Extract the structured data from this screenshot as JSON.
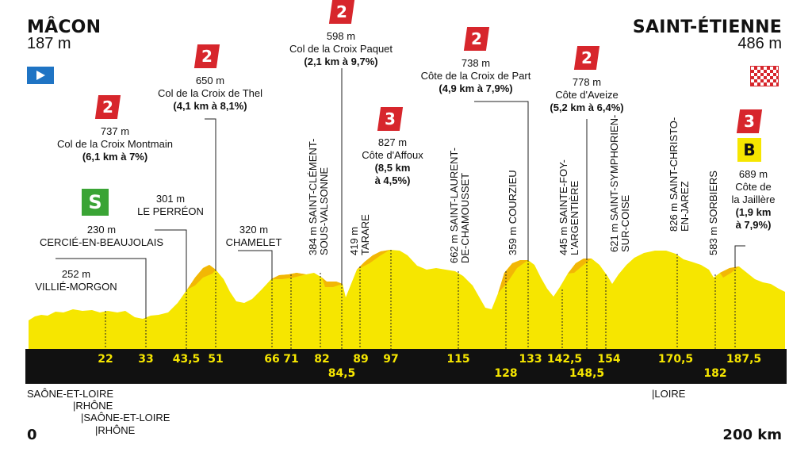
{
  "start": {
    "city": "MÂCON",
    "altitude": "187 m"
  },
  "finish": {
    "city": "SAINT-ÉTIENNE",
    "altitude": "486 m"
  },
  "climbs": [
    {
      "cat": "2",
      "altitude": "737 m",
      "name": "Col de la Croix Montmain",
      "detail": "(6,1 km à 7%)"
    },
    {
      "cat": "2",
      "altitude": "650 m",
      "name": "Col de la Croix de Thel",
      "detail": "(4,1 km à 8,1%)"
    },
    {
      "cat": "2",
      "altitude": "598 m",
      "name": "Col de la Croix Paquet",
      "detail": "(2,1 km à 9,7%)"
    },
    {
      "cat": "3",
      "altitude": "827 m",
      "name": "Côte d'Affoux",
      "detail": "(8,5 km",
      "detail2": "à 4,5%)"
    },
    {
      "cat": "2",
      "altitude": "738 m",
      "name": "Côte de la Croix de Part",
      "detail": "(4,9 km à 7,9%)"
    },
    {
      "cat": "2",
      "altitude": "778 m",
      "name": "Côte d'Aveize",
      "detail": "(5,2 km à 6,4%)"
    },
    {
      "cat": "3",
      "bonus": "B",
      "altitude": "689 m",
      "name": "Côte de",
      "name2": "la Jaillère",
      "detail": "(1,9 km",
      "detail2": "à 7,9%)"
    }
  ],
  "sprint": {
    "icon": "S"
  },
  "places": [
    {
      "altitude": "252 m",
      "name": "VILLIÉ-MORGON"
    },
    {
      "altitude": "230 m",
      "name": "CERCIÉ-EN-BEAUJOLAIS"
    },
    {
      "altitude": "301 m",
      "name": "LE PERRÉON"
    },
    {
      "altitude": "320 m",
      "name": "CHAMELET"
    }
  ],
  "vertical_places": [
    {
      "line1": "384 m SAINT-CLÉMENT-",
      "line2": "SOUS-VALSONNE"
    },
    {
      "line1": "419 m",
      "line2": "TARARE"
    },
    {
      "line1": "662 m SAINT-LAURENT-",
      "line2": "DE-CHAMOUSSET"
    },
    {
      "line1": "359 m COURZIEU",
      "line2": ""
    },
    {
      "line1": "445 m SAINTE-FOY-",
      "line2": "L'ARGENTIÈRE"
    },
    {
      "line1": "621 m SAINT-SYMPHORIEN-",
      "line2": "SUR-COISE"
    },
    {
      "line1": "826 m SAINT-CHRISTO-",
      "line2": "EN-JAREZ"
    },
    {
      "line1": "583 m SORBIERS",
      "line2": ""
    }
  ],
  "km_top": [
    "22",
    "33",
    "43,5",
    "51",
    "66",
    "71",
    "82",
    "89",
    "97",
    "115",
    "133",
    "142,5",
    "154",
    "170,5",
    "187,5"
  ],
  "km_bottom": [
    "84,5",
    "128",
    "148,5",
    "182"
  ],
  "departments": [
    "SAÔNE-ET-LOIRE",
    "RHÔNE",
    "SAÔNE-ET-LOIRE",
    "RHÔNE",
    "LOIRE"
  ],
  "distance_start": "0",
  "distance_end": "200 km",
  "colors": {
    "profile": "#f6e600",
    "climb": "#f2b705",
    "band": "#111111",
    "km": "#f6e600",
    "cat": "#d7262c",
    "sprint": "#3aa435",
    "start": "#1f74c4"
  }
}
